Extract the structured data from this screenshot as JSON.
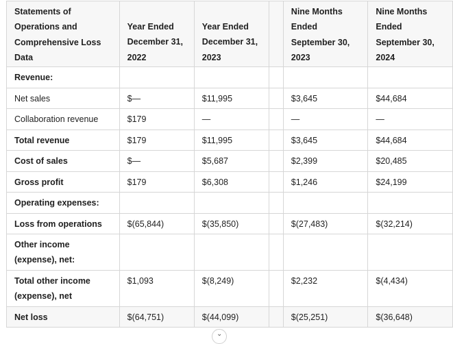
{
  "table": {
    "headers": [
      [
        "Statements of",
        "Operations and",
        "Comprehensive Loss",
        "Data"
      ],
      [
        "Year Ended",
        "December 31,",
        "2022"
      ],
      [
        "Year Ended",
        "December 31,",
        "2023"
      ],
      [],
      [
        "Nine Months",
        "Ended",
        "September 30,",
        "2023"
      ],
      [
        "Nine Months",
        "Ended",
        "September 30,",
        "2024"
      ]
    ],
    "rows": [
      {
        "label": "Revenue:",
        "values": [
          "",
          "",
          "",
          ""
        ]
      },
      {
        "label": "Net sales",
        "values": [
          "$—",
          "$11,995",
          "$3,645",
          "$44,684"
        ]
      },
      {
        "label": "Collaboration revenue",
        "values": [
          "$179",
          "—",
          "—",
          "—"
        ]
      },
      {
        "label": "Total revenue",
        "values": [
          "$179",
          "$11,995",
          "$3,645",
          "$44,684"
        ]
      },
      {
        "label": "Cost of sales",
        "values": [
          "$—",
          "$5,687",
          "$2,399",
          "$20,485"
        ]
      },
      {
        "label": "Gross profit",
        "values": [
          "$179",
          "$6,308",
          "$1,246",
          "$24,199"
        ]
      },
      {
        "label": "Operating expenses:",
        "values": [
          "",
          "",
          "",
          ""
        ]
      },
      {
        "label": "Loss from operations",
        "values": [
          "$(65,844)",
          "$(35,850)",
          "$(27,483)",
          "$(32,214)"
        ]
      },
      {
        "label_lines": [
          "Other income",
          "(expense), net:"
        ],
        "values": [
          "",
          "",
          "",
          ""
        ]
      },
      {
        "label_lines": [
          "Total other income",
          "(expense), net"
        ],
        "values": [
          "$1,093",
          "$(8,249)",
          "$2,232",
          "$(4,434)"
        ]
      },
      {
        "label": "Net loss",
        "values": [
          "$(64,751)",
          "$(44,099)",
          "$(25,251)",
          "$(36,648)"
        ]
      }
    ]
  },
  "scroll_handle_icon": "chevron-down-icon"
}
